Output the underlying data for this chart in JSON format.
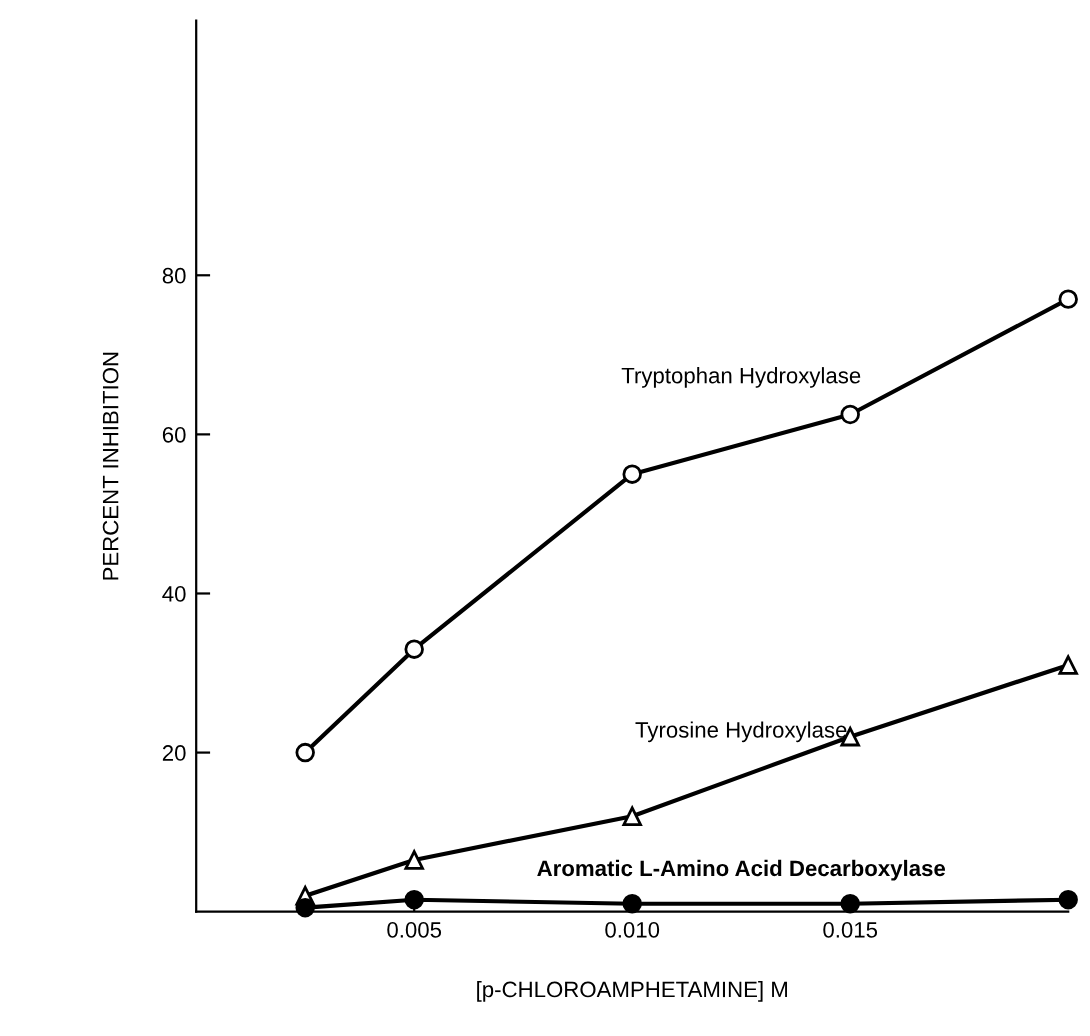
{
  "chart_data": {
    "type": "line",
    "xlabel": "[p-CHLOROAMPHETAMINE] M",
    "ylabel": "PERCENT INHIBITION",
    "x": [
      0.0025,
      0.005,
      0.01,
      0.015,
      0.02
    ],
    "series": [
      {
        "name": "Tryptophan Hydroxylase",
        "color": "#000000",
        "marker": "circle",
        "values": [
          20,
          33,
          55,
          62.5,
          77
        ]
      },
      {
        "name": "Tyrosine Hydroxylase",
        "color": "#000000",
        "marker": "triangle",
        "values": [
          2,
          6.5,
          12,
          22,
          31
        ]
      },
      {
        "name": "Aromatic L-Amino Acid Decarboxylase",
        "color": "#000000",
        "marker": "circle",
        "values": [
          0.5,
          1.5,
          1,
          1,
          1.5
        ]
      }
    ],
    "xlim": [
      0,
      0.02
    ],
    "ylim": [
      0,
      112
    ],
    "xticks": [
      0.005,
      {
        "value": 0.01,
        "label": "0.010"
      },
      0.015
    ],
    "yticks": [
      20,
      40,
      60,
      80
    ],
    "grid": false,
    "legend": false,
    "line_style": "solid"
  }
}
